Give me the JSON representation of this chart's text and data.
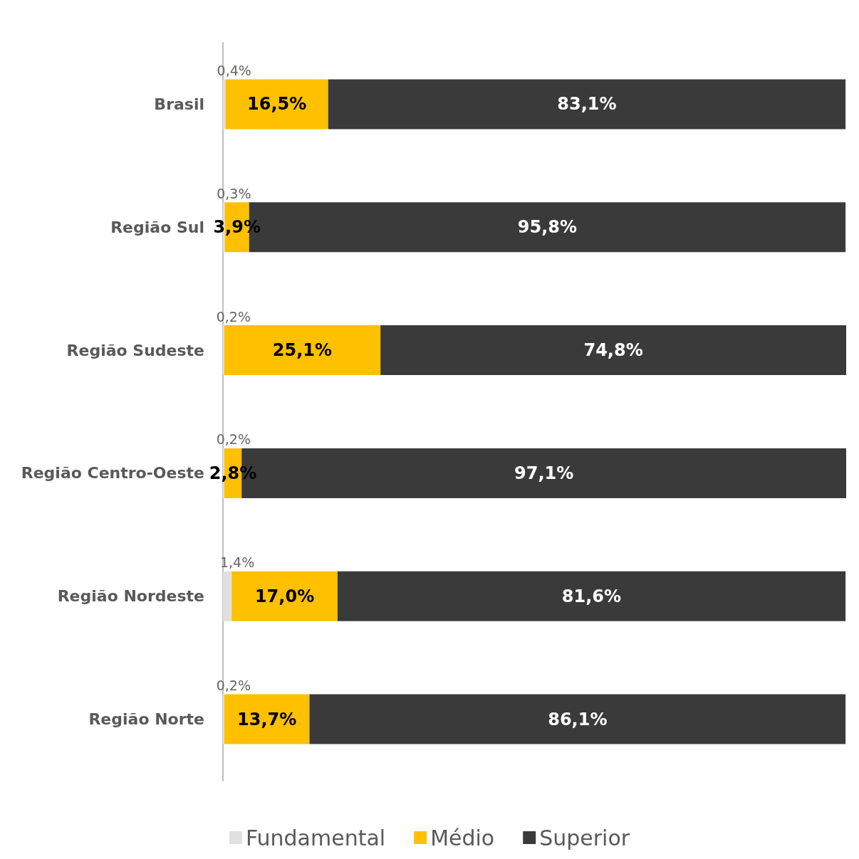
{
  "chart_data": {
    "type": "bar",
    "orientation": "horizontal",
    "stacked": true,
    "legend": "bottom",
    "categories": [
      "Brasil",
      "Região Sul",
      "Região Sudeste",
      "Região Centro-Oeste",
      "Região Nordeste",
      "Região Norte"
    ],
    "series": [
      {
        "name": "Fundamental",
        "color": "#e0e0e0",
        "values": [
          0.4,
          0.3,
          0.2,
          0.2,
          1.4,
          0.2
        ],
        "value_labels": [
          "0,4%",
          "0,3%",
          "0,2%",
          "0,2%",
          "1,4%",
          "0,2%"
        ]
      },
      {
        "name": "Médio",
        "color": "#ffc000",
        "values": [
          16.5,
          3.9,
          25.1,
          2.8,
          17.0,
          13.7
        ],
        "value_labels": [
          "16,5%",
          "3,9%",
          "25,1%",
          "2,8%",
          "17,0%",
          "13,7%"
        ]
      },
      {
        "name": "Superior",
        "color": "#3a3a3a",
        "values": [
          83.1,
          95.8,
          74.8,
          97.1,
          81.6,
          86.1
        ],
        "value_labels": [
          "83,1%",
          "95,8%",
          "74,8%",
          "97,1%",
          "81,6%",
          "86,1%"
        ]
      }
    ]
  }
}
